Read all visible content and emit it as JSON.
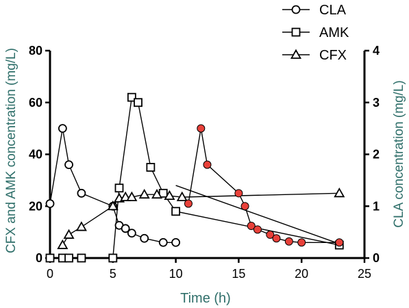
{
  "colors": {
    "axis_title": "#2f6f6a",
    "line": "#000000",
    "filled_marker": "#e8413a",
    "marker_open": "#ffffff"
  },
  "chart_data": {
    "type": "line",
    "xlabel": "Time (h)",
    "ylabel_left": "CFX and AMK concentration (mg/L)",
    "ylabel_right": "CLA concentration (mg/L)",
    "xlim": [
      0,
      25
    ],
    "ylim_left": [
      0,
      80
    ],
    "ylim_right": [
      0,
      4
    ],
    "xticks": [
      "0",
      "5",
      "10",
      "15",
      "20",
      "25"
    ],
    "yticks_left": [
      "0",
      "20",
      "40",
      "60",
      "80"
    ],
    "yticks_right": [
      "0",
      "1",
      "2",
      "3",
      "4"
    ],
    "legend_position": "top-right",
    "series": [
      {
        "name": "CLA",
        "axis": "right",
        "marker": "circle",
        "x": [
          0,
          1,
          1.5,
          2.5,
          5,
          5.5,
          6,
          6.5,
          7.5,
          9,
          10
        ],
        "values": [
          1.05,
          2.5,
          1.8,
          1.25,
          1.0,
          0.63,
          0.57,
          0.48,
          0.38,
          0.3,
          0.3
        ]
      },
      {
        "name": "AMK",
        "axis": "left",
        "marker": "square",
        "x": [
          0,
          1,
          1.5,
          2.5,
          5,
          5.5,
          6.5,
          7,
          8,
          9,
          10,
          23
        ],
        "values": [
          0,
          0,
          0,
          0,
          0,
          27,
          62,
          60,
          35,
          25,
          18,
          5
        ]
      },
      {
        "name": "CFX",
        "axis": "left",
        "marker": "triangle",
        "x": [
          1,
          1.5,
          2.5,
          5,
          5.5,
          6,
          6.5,
          7.5,
          8.5,
          9.5,
          10.5,
          23
        ],
        "values": [
          5,
          9,
          12,
          20,
          23,
          23.5,
          23.5,
          24.5,
          24.5,
          24,
          23.5,
          25
        ]
      },
      {
        "name": "",
        "axis": "right",
        "marker": "circle-filled",
        "x": [
          11,
          12,
          12.5,
          15,
          15.5,
          16,
          16.5,
          17.5,
          18,
          19,
          20,
          23
        ],
        "values": [
          1.05,
          2.5,
          1.8,
          1.25,
          1.0,
          0.62,
          0.55,
          0.45,
          0.38,
          0.32,
          0.3,
          0.3
        ]
      }
    ],
    "extra_segments": [
      {
        "axis": "left",
        "points": [
          [
            10,
            28
          ],
          [
            23,
            5.5
          ]
        ]
      }
    ]
  }
}
